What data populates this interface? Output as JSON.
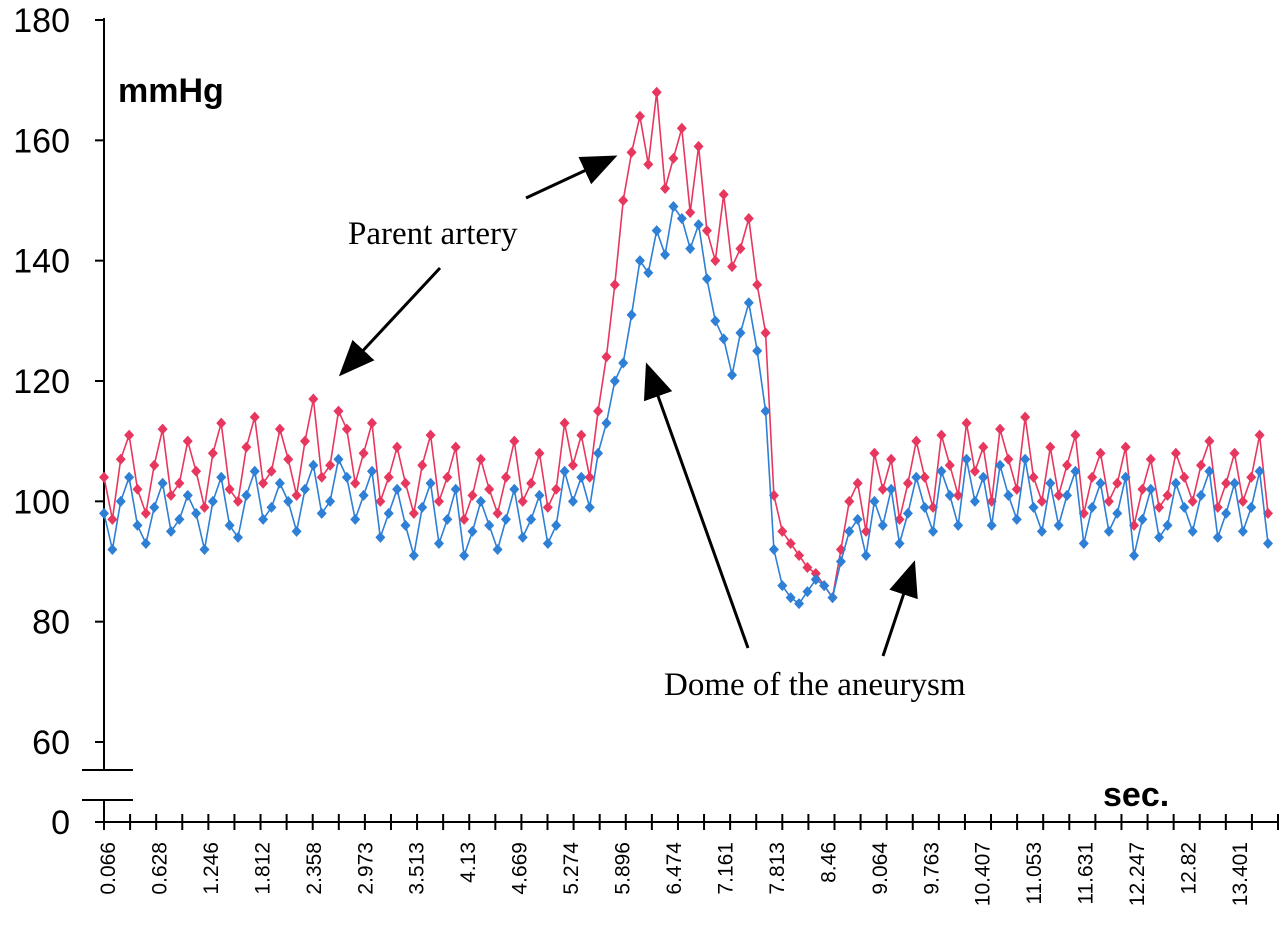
{
  "chart_data": {
    "type": "line",
    "title": "",
    "ylabel": "mmHg",
    "xlabel": "sec.",
    "ylim": [
      0,
      180
    ],
    "y_axis_break": [
      0,
      55
    ],
    "yticks": [
      0,
      60,
      80,
      100,
      120,
      140,
      160,
      180
    ],
    "xlim": [
      0,
      13.9
    ],
    "xtick_labels": [
      "0.066",
      "0.628",
      "1.246",
      "1.812",
      "2.358",
      "2.973",
      "3.513",
      "4.13",
      "4.669",
      "5.274",
      "5.896",
      "6.474",
      "7.161",
      "7.813",
      "8.46",
      "9.064",
      "9.763",
      "10.407",
      "11.053",
      "11.631",
      "12.247",
      "12.82",
      "13.401"
    ],
    "series": [
      {
        "color": "#e8375f",
        "x": [
          0.0,
          0.1,
          0.2,
          0.3,
          0.4,
          0.5,
          0.6,
          0.7,
          0.8,
          0.9,
          1.0,
          1.1,
          1.2,
          1.3,
          1.4,
          1.5,
          1.6,
          1.7,
          1.8,
          1.9,
          2.0,
          2.1,
          2.2,
          2.3,
          2.4,
          2.5,
          2.6,
          2.7,
          2.8,
          2.9,
          3.0,
          3.1,
          3.2,
          3.3,
          3.4,
          3.5,
          3.6,
          3.7,
          3.8,
          3.9,
          4.0,
          4.1,
          4.2,
          4.3,
          4.4,
          4.5,
          4.6,
          4.7,
          4.8,
          4.9,
          5.0,
          5.1,
          5.2,
          5.3,
          5.4,
          5.5,
          5.6,
          5.7,
          5.8,
          5.9,
          6.0,
          6.1,
          6.2,
          6.3,
          6.4,
          6.5,
          6.6,
          6.7,
          6.8,
          6.9,
          7.0,
          7.1,
          7.2,
          7.3,
          7.4,
          7.5,
          7.6,
          7.7,
          7.8,
          7.9,
          8.0,
          8.1,
          8.2,
          8.3,
          8.4,
          8.5,
          8.6,
          8.7,
          8.8,
          8.9,
          9.0,
          9.1,
          9.2,
          9.3,
          9.4,
          9.5,
          9.6,
          9.7,
          9.8,
          9.9,
          10.0,
          10.1,
          10.2,
          10.3,
          10.4,
          10.5,
          10.6,
          10.7,
          10.8,
          10.9,
          11.0,
          11.1,
          11.2,
          11.3,
          11.4,
          11.5,
          11.6,
          11.7,
          11.8,
          11.9,
          12.0,
          12.1,
          12.2,
          12.3,
          12.4,
          12.5,
          12.6,
          12.7,
          12.8,
          12.9,
          13.0,
          13.1,
          13.2,
          13.3,
          13.4,
          13.5,
          13.6,
          13.7,
          13.8,
          13.9
        ],
        "y": [
          104,
          97,
          107,
          111,
          102,
          98,
          106,
          112,
          101,
          103,
          110,
          105,
          99,
          108,
          113,
          102,
          100,
          109,
          114,
          103,
          105,
          112,
          107,
          101,
          110,
          117,
          104,
          106,
          115,
          112,
          103,
          108,
          113,
          100,
          104,
          109,
          103,
          98,
          106,
          111,
          100,
          104,
          109,
          97,
          101,
          107,
          102,
          98,
          104,
          110,
          100,
          103,
          108,
          99,
          102,
          113,
          106,
          111,
          104,
          115,
          124,
          136,
          150,
          158,
          164,
          156,
          168,
          152,
          157,
          162,
          148,
          159,
          145,
          140,
          151,
          139,
          142,
          147,
          136,
          128,
          101,
          95,
          93,
          91,
          89,
          88,
          86,
          84,
          92,
          100,
          103,
          95,
          108,
          102,
          107,
          97,
          103,
          110,
          104,
          99,
          111,
          106,
          101,
          113,
          105,
          109,
          100,
          112,
          107,
          102,
          114,
          104,
          100,
          109,
          101,
          106,
          111,
          98,
          104,
          108,
          100,
          103,
          109,
          96,
          102,
          107,
          99,
          101,
          108,
          104,
          100,
          106,
          110,
          99,
          103,
          108,
          100,
          104,
          111,
          98
        ]
      },
      {
        "color": "#2e7fd6",
        "x": [
          0.0,
          0.1,
          0.2,
          0.3,
          0.4,
          0.5,
          0.6,
          0.7,
          0.8,
          0.9,
          1.0,
          1.1,
          1.2,
          1.3,
          1.4,
          1.5,
          1.6,
          1.7,
          1.8,
          1.9,
          2.0,
          2.1,
          2.2,
          2.3,
          2.4,
          2.5,
          2.6,
          2.7,
          2.8,
          2.9,
          3.0,
          3.1,
          3.2,
          3.3,
          3.4,
          3.5,
          3.6,
          3.7,
          3.8,
          3.9,
          4.0,
          4.1,
          4.2,
          4.3,
          4.4,
          4.5,
          4.6,
          4.7,
          4.8,
          4.9,
          5.0,
          5.1,
          5.2,
          5.3,
          5.4,
          5.5,
          5.6,
          5.7,
          5.8,
          5.9,
          6.0,
          6.1,
          6.2,
          6.3,
          6.4,
          6.5,
          6.6,
          6.7,
          6.8,
          6.9,
          7.0,
          7.1,
          7.2,
          7.3,
          7.4,
          7.5,
          7.6,
          7.7,
          7.8,
          7.9,
          8.0,
          8.1,
          8.2,
          8.3,
          8.4,
          8.5,
          8.6,
          8.7,
          8.8,
          8.9,
          9.0,
          9.1,
          9.2,
          9.3,
          9.4,
          9.5,
          9.6,
          9.7,
          9.8,
          9.9,
          10.0,
          10.1,
          10.2,
          10.3,
          10.4,
          10.5,
          10.6,
          10.7,
          10.8,
          10.9,
          11.0,
          11.1,
          11.2,
          11.3,
          11.4,
          11.5,
          11.6,
          11.7,
          11.8,
          11.9,
          12.0,
          12.1,
          12.2,
          12.3,
          12.4,
          12.5,
          12.6,
          12.7,
          12.8,
          12.9,
          13.0,
          13.1,
          13.2,
          13.3,
          13.4,
          13.5,
          13.6,
          13.7,
          13.8,
          13.9
        ],
        "y": [
          98,
          92,
          100,
          104,
          96,
          93,
          99,
          103,
          95,
          97,
          101,
          98,
          92,
          100,
          104,
          96,
          94,
          101,
          105,
          97,
          99,
          103,
          100,
          95,
          102,
          106,
          98,
          100,
          107,
          104,
          97,
          101,
          105,
          94,
          98,
          102,
          96,
          91,
          99,
          103,
          93,
          97,
          102,
          91,
          95,
          100,
          96,
          92,
          97,
          102,
          94,
          97,
          101,
          93,
          96,
          105,
          100,
          104,
          99,
          108,
          113,
          120,
          123,
          131,
          140,
          138,
          145,
          141,
          149,
          147,
          142,
          146,
          137,
          130,
          127,
          121,
          128,
          133,
          125,
          115,
          92,
          86,
          84,
          83,
          85,
          87,
          86,
          84,
          90,
          95,
          97,
          91,
          100,
          96,
          102,
          93,
          98,
          104,
          99,
          95,
          105,
          101,
          96,
          107,
          100,
          104,
          96,
          106,
          101,
          97,
          107,
          99,
          95,
          103,
          96,
          101,
          105,
          93,
          99,
          103,
          95,
          98,
          104,
          91,
          97,
          102,
          94,
          96,
          103,
          99,
          95,
          101,
          105,
          94,
          98,
          103,
          95,
          99,
          105,
          93
        ]
      }
    ],
    "annotations": [
      {
        "text": "Parent artery"
      },
      {
        "text": "Dome of the aneurysm"
      }
    ]
  }
}
